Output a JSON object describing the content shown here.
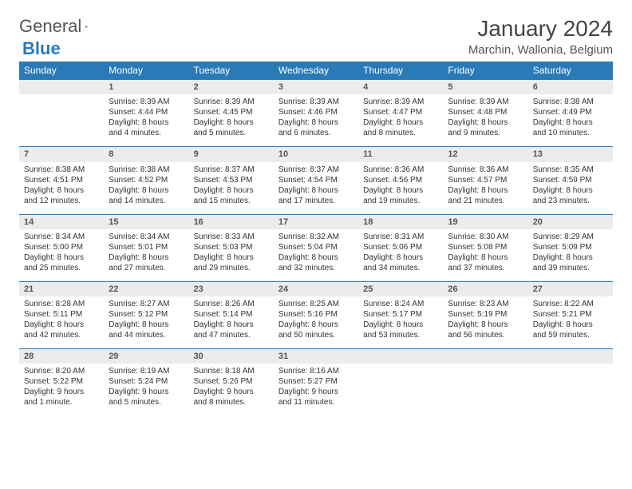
{
  "logo": {
    "text1": "General",
    "text2": "Blue"
  },
  "header": {
    "title": "January 2024",
    "location": "Marchin, Wallonia, Belgium"
  },
  "colors": {
    "accent": "#2a7ab8",
    "header_bg": "#2a7ab8",
    "daynum_bg": "#ececec",
    "text": "#333333"
  },
  "weekdays": [
    "Sunday",
    "Monday",
    "Tuesday",
    "Wednesday",
    "Thursday",
    "Friday",
    "Saturday"
  ],
  "weeks": [
    [
      null,
      {
        "n": "1",
        "sr": "Sunrise: 8:39 AM",
        "ss": "Sunset: 4:44 PM",
        "dl": "Daylight: 8 hours and 4 minutes."
      },
      {
        "n": "2",
        "sr": "Sunrise: 8:39 AM",
        "ss": "Sunset: 4:45 PM",
        "dl": "Daylight: 8 hours and 5 minutes."
      },
      {
        "n": "3",
        "sr": "Sunrise: 8:39 AM",
        "ss": "Sunset: 4:46 PM",
        "dl": "Daylight: 8 hours and 6 minutes."
      },
      {
        "n": "4",
        "sr": "Sunrise: 8:39 AM",
        "ss": "Sunset: 4:47 PM",
        "dl": "Daylight: 8 hours and 8 minutes."
      },
      {
        "n": "5",
        "sr": "Sunrise: 8:39 AM",
        "ss": "Sunset: 4:48 PM",
        "dl": "Daylight: 8 hours and 9 minutes."
      },
      {
        "n": "6",
        "sr": "Sunrise: 8:38 AM",
        "ss": "Sunset: 4:49 PM",
        "dl": "Daylight: 8 hours and 10 minutes."
      }
    ],
    [
      {
        "n": "7",
        "sr": "Sunrise: 8:38 AM",
        "ss": "Sunset: 4:51 PM",
        "dl": "Daylight: 8 hours and 12 minutes."
      },
      {
        "n": "8",
        "sr": "Sunrise: 8:38 AM",
        "ss": "Sunset: 4:52 PM",
        "dl": "Daylight: 8 hours and 14 minutes."
      },
      {
        "n": "9",
        "sr": "Sunrise: 8:37 AM",
        "ss": "Sunset: 4:53 PM",
        "dl": "Daylight: 8 hours and 15 minutes."
      },
      {
        "n": "10",
        "sr": "Sunrise: 8:37 AM",
        "ss": "Sunset: 4:54 PM",
        "dl": "Daylight: 8 hours and 17 minutes."
      },
      {
        "n": "11",
        "sr": "Sunrise: 8:36 AM",
        "ss": "Sunset: 4:56 PM",
        "dl": "Daylight: 8 hours and 19 minutes."
      },
      {
        "n": "12",
        "sr": "Sunrise: 8:36 AM",
        "ss": "Sunset: 4:57 PM",
        "dl": "Daylight: 8 hours and 21 minutes."
      },
      {
        "n": "13",
        "sr": "Sunrise: 8:35 AM",
        "ss": "Sunset: 4:59 PM",
        "dl": "Daylight: 8 hours and 23 minutes."
      }
    ],
    [
      {
        "n": "14",
        "sr": "Sunrise: 8:34 AM",
        "ss": "Sunset: 5:00 PM",
        "dl": "Daylight: 8 hours and 25 minutes."
      },
      {
        "n": "15",
        "sr": "Sunrise: 8:34 AM",
        "ss": "Sunset: 5:01 PM",
        "dl": "Daylight: 8 hours and 27 minutes."
      },
      {
        "n": "16",
        "sr": "Sunrise: 8:33 AM",
        "ss": "Sunset: 5:03 PM",
        "dl": "Daylight: 8 hours and 29 minutes."
      },
      {
        "n": "17",
        "sr": "Sunrise: 8:32 AM",
        "ss": "Sunset: 5:04 PM",
        "dl": "Daylight: 8 hours and 32 minutes."
      },
      {
        "n": "18",
        "sr": "Sunrise: 8:31 AM",
        "ss": "Sunset: 5:06 PM",
        "dl": "Daylight: 8 hours and 34 minutes."
      },
      {
        "n": "19",
        "sr": "Sunrise: 8:30 AM",
        "ss": "Sunset: 5:08 PM",
        "dl": "Daylight: 8 hours and 37 minutes."
      },
      {
        "n": "20",
        "sr": "Sunrise: 8:29 AM",
        "ss": "Sunset: 5:09 PM",
        "dl": "Daylight: 8 hours and 39 minutes."
      }
    ],
    [
      {
        "n": "21",
        "sr": "Sunrise: 8:28 AM",
        "ss": "Sunset: 5:11 PM",
        "dl": "Daylight: 8 hours and 42 minutes."
      },
      {
        "n": "22",
        "sr": "Sunrise: 8:27 AM",
        "ss": "Sunset: 5:12 PM",
        "dl": "Daylight: 8 hours and 44 minutes."
      },
      {
        "n": "23",
        "sr": "Sunrise: 8:26 AM",
        "ss": "Sunset: 5:14 PM",
        "dl": "Daylight: 8 hours and 47 minutes."
      },
      {
        "n": "24",
        "sr": "Sunrise: 8:25 AM",
        "ss": "Sunset: 5:16 PM",
        "dl": "Daylight: 8 hours and 50 minutes."
      },
      {
        "n": "25",
        "sr": "Sunrise: 8:24 AM",
        "ss": "Sunset: 5:17 PM",
        "dl": "Daylight: 8 hours and 53 minutes."
      },
      {
        "n": "26",
        "sr": "Sunrise: 8:23 AM",
        "ss": "Sunset: 5:19 PM",
        "dl": "Daylight: 8 hours and 56 minutes."
      },
      {
        "n": "27",
        "sr": "Sunrise: 8:22 AM",
        "ss": "Sunset: 5:21 PM",
        "dl": "Daylight: 8 hours and 59 minutes."
      }
    ],
    [
      {
        "n": "28",
        "sr": "Sunrise: 8:20 AM",
        "ss": "Sunset: 5:22 PM",
        "dl": "Daylight: 9 hours and 1 minute."
      },
      {
        "n": "29",
        "sr": "Sunrise: 8:19 AM",
        "ss": "Sunset: 5:24 PM",
        "dl": "Daylight: 9 hours and 5 minutes."
      },
      {
        "n": "30",
        "sr": "Sunrise: 8:18 AM",
        "ss": "Sunset: 5:26 PM",
        "dl": "Daylight: 9 hours and 8 minutes."
      },
      {
        "n": "31",
        "sr": "Sunrise: 8:16 AM",
        "ss": "Sunset: 5:27 PM",
        "dl": "Daylight: 9 hours and 11 minutes."
      },
      null,
      null,
      null
    ]
  ]
}
